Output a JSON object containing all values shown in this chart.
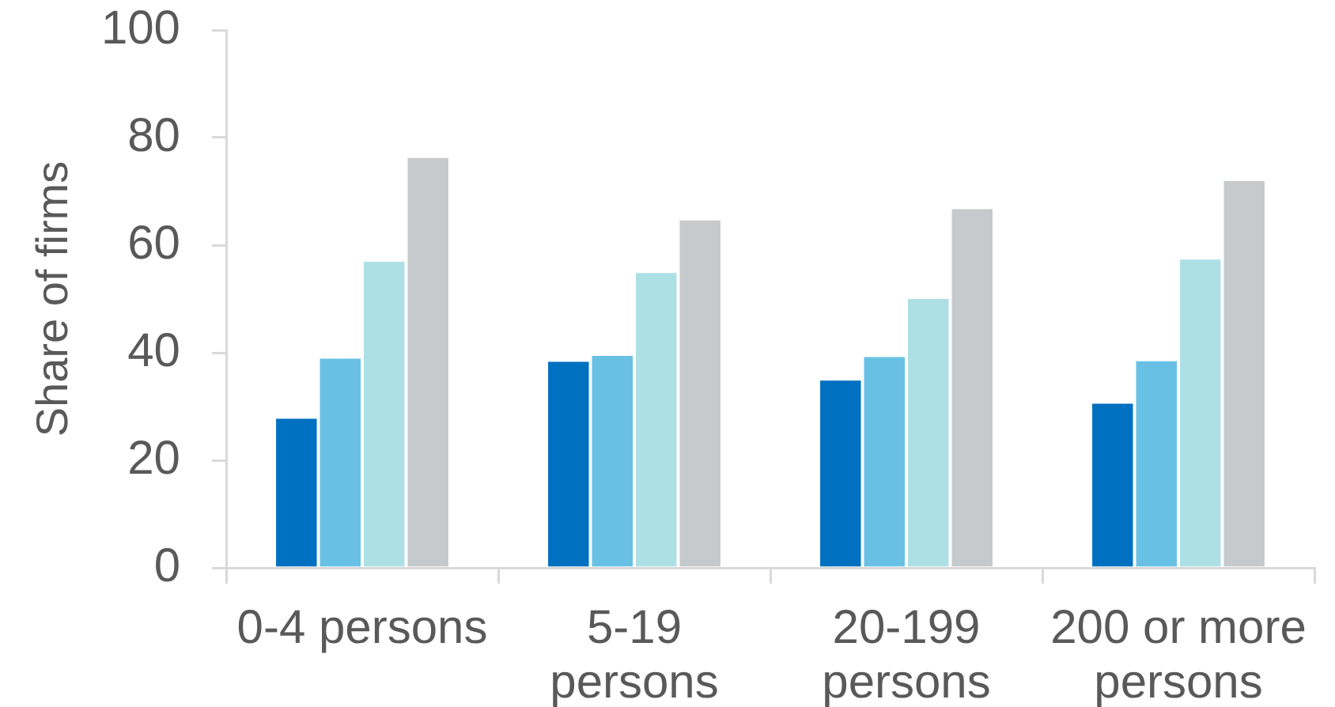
{
  "chart_data": {
    "type": "bar",
    "ylabel": "Share of firms",
    "categories": [
      "0-4 persons",
      "5-19 persons",
      "20-199 persons",
      "200 or more persons"
    ],
    "series": [
      {
        "color": "#0070c0",
        "values": [
          28,
          38.6,
          35.1,
          30.8
        ]
      },
      {
        "color": "#68c1e5",
        "values": [
          39.2,
          39.7,
          39.5,
          38.7
        ]
      },
      {
        "color": "#ade0e5",
        "values": [
          57.2,
          55.1,
          50.3,
          57.6
        ]
      },
      {
        "color": "#c6cacc",
        "values": [
          76.5,
          64.9,
          67,
          72.2
        ]
      }
    ],
    "ylim": [
      0,
      100
    ],
    "yticks": [
      0,
      20,
      40,
      60,
      80,
      100
    ]
  }
}
